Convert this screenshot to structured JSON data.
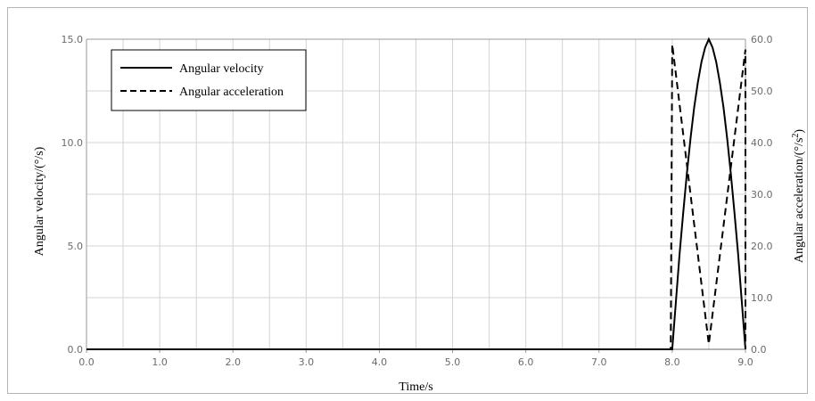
{
  "chart_data": {
    "type": "line",
    "xlabel": "Time/s",
    "ylabel_left": "Angular velocity/(°/s)",
    "ylabel_right_main": "Angular acceleration/(°/s",
    "ylabel_right_sup": "2",
    "ylabel_right_tail": ")",
    "xlim": [
      0,
      9
    ],
    "ylim_left": [
      0,
      15
    ],
    "ylim_right": [
      0,
      60
    ],
    "x_ticks": [
      "0.0",
      "1.0",
      "2.0",
      "3.0",
      "4.0",
      "5.0",
      "6.0",
      "7.0",
      "8.0",
      "9.0"
    ],
    "y_left_ticks": [
      "0.0",
      "5.0",
      "10.0",
      "15.0"
    ],
    "y_right_ticks": [
      "0.0",
      "10.0",
      "20.0",
      "30.0",
      "40.0",
      "50.0",
      "60.0"
    ],
    "grid": true,
    "legend_position": "top-left",
    "series": [
      {
        "name": "Angular velocity",
        "axis": "left",
        "style": "solid",
        "x": [
          0,
          8.0,
          8.05,
          8.1,
          8.15,
          8.2,
          8.25,
          8.3,
          8.35,
          8.4,
          8.45,
          8.5,
          8.55,
          8.6,
          8.65,
          8.7,
          8.75,
          8.8,
          8.85,
          8.9,
          8.95,
          9.0
        ],
        "y": [
          0,
          0,
          2.3,
          4.6,
          6.6,
          8.5,
          10.2,
          11.7,
          12.9,
          13.9,
          14.6,
          15.0,
          14.6,
          13.9,
          12.9,
          11.7,
          10.2,
          8.5,
          6.6,
          4.6,
          2.3,
          0
        ]
      },
      {
        "name": "Angular acceleration",
        "axis": "right",
        "style": "dashed",
        "x": [
          0,
          7.98,
          8.0,
          8.5,
          9.0,
          9.0
        ],
        "y": [
          0,
          0,
          59,
          1,
          58,
          0
        ]
      }
    ]
  }
}
